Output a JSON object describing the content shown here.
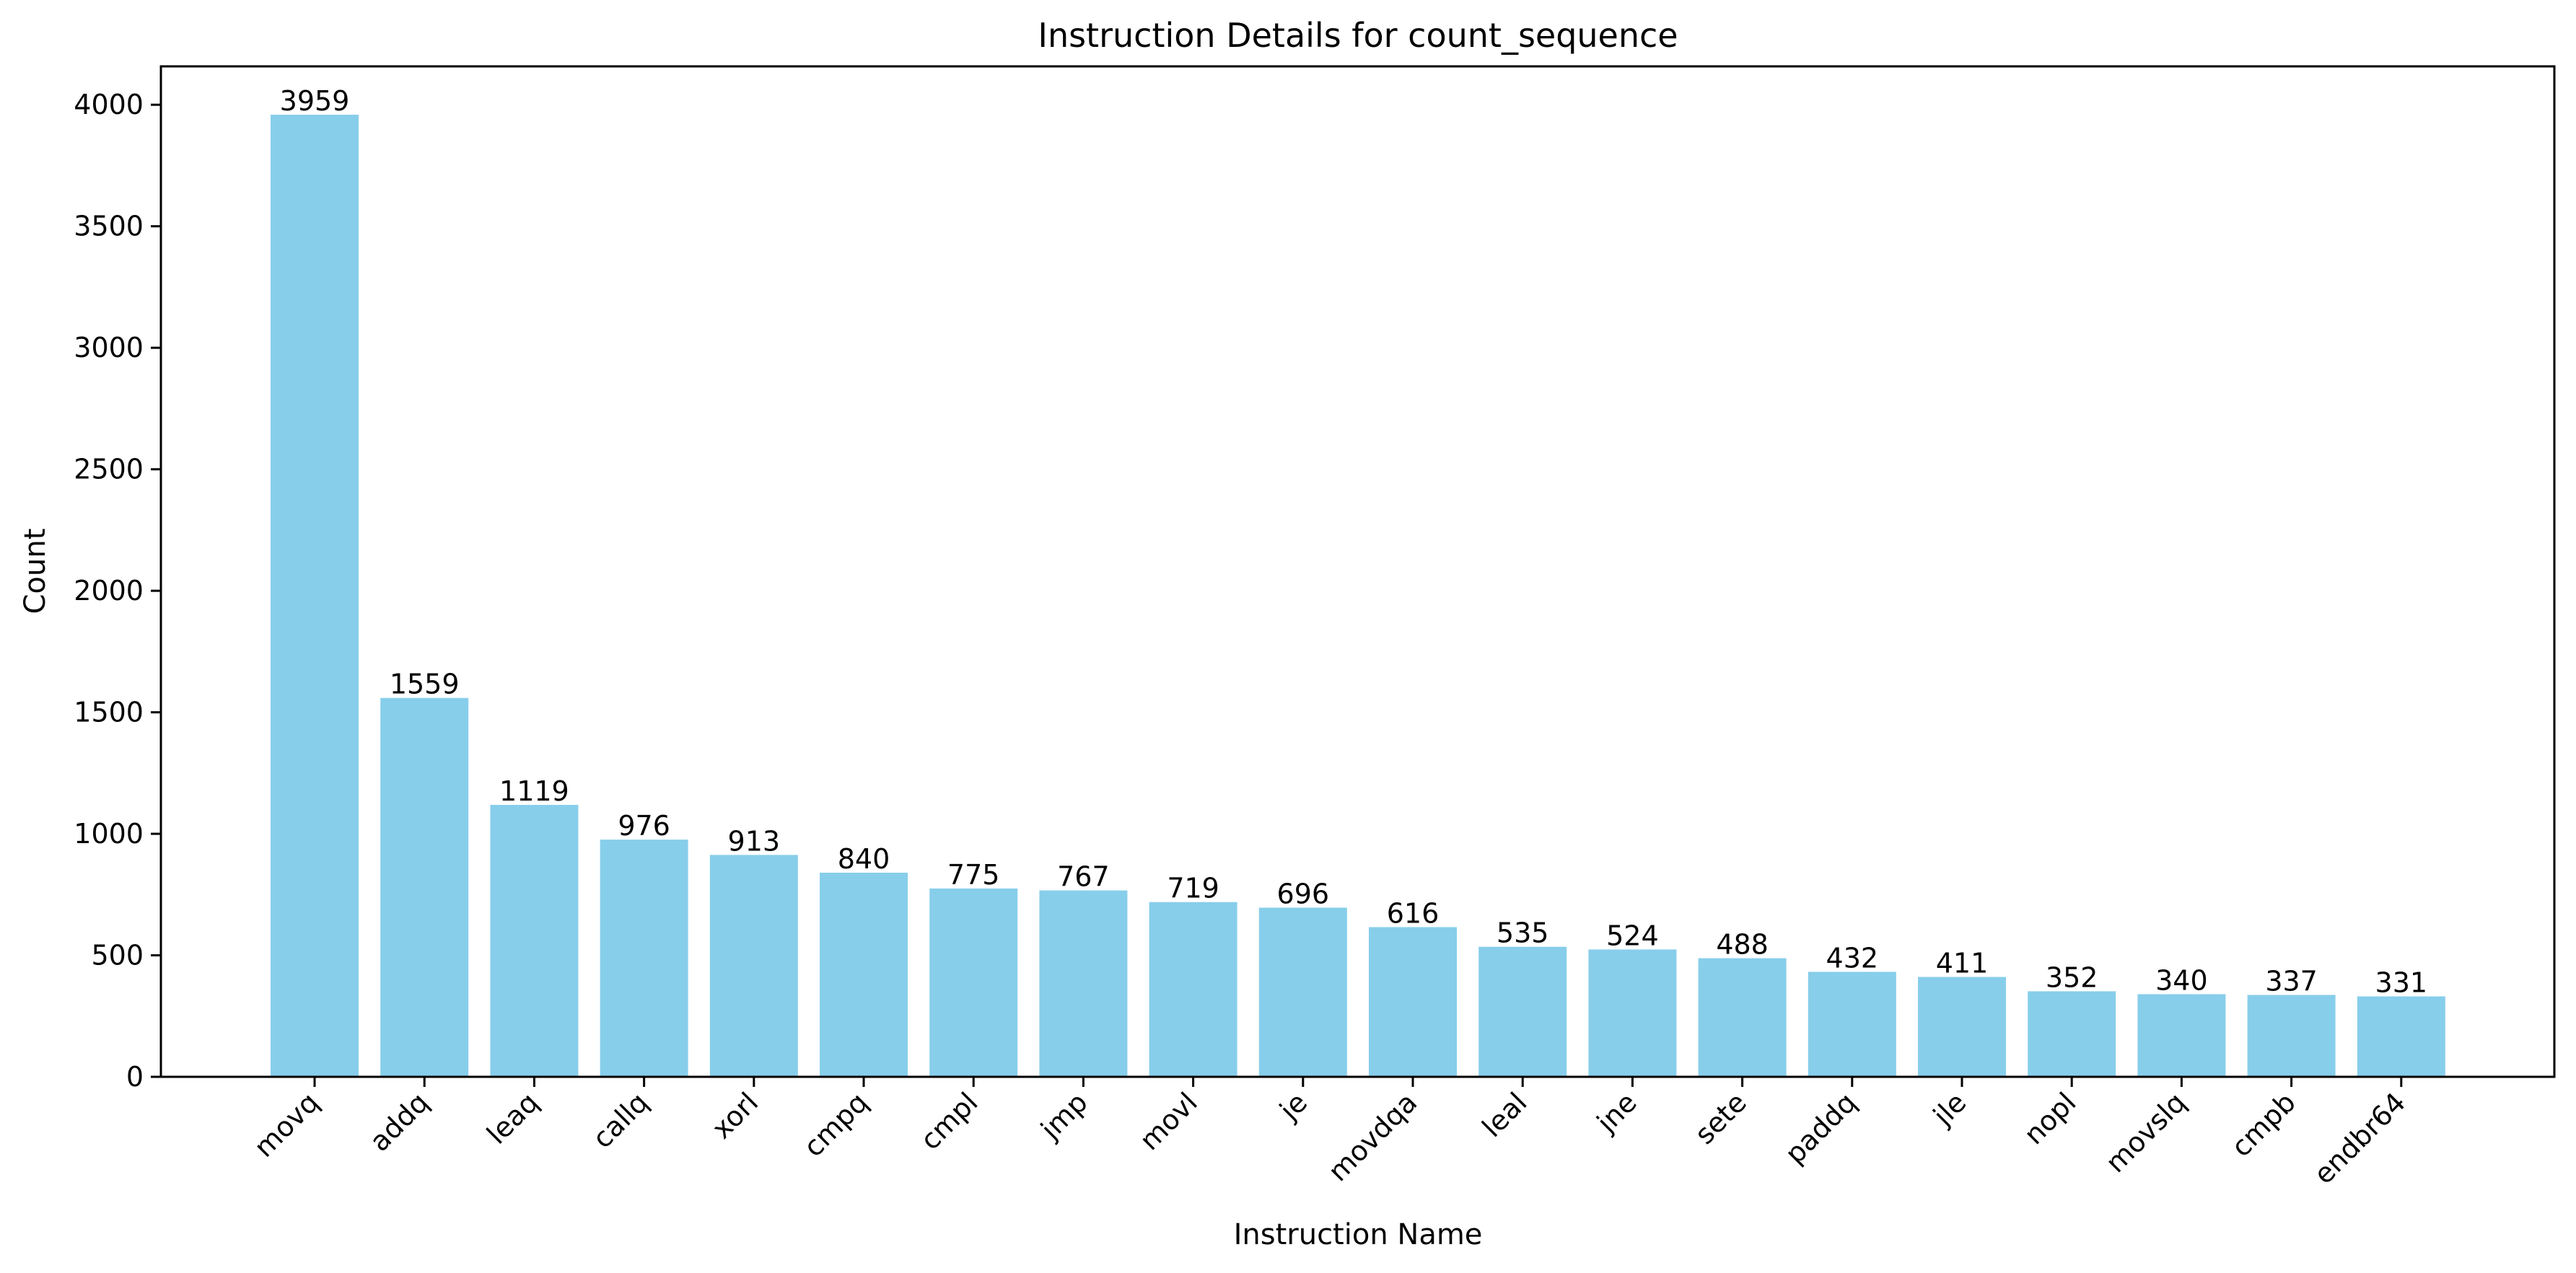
{
  "chart_data": {
    "type": "bar",
    "title": "Instruction Details for count_sequence",
    "xlabel": "Instruction Name",
    "ylabel": "Count",
    "categories": [
      "movq",
      "addq",
      "leaq",
      "callq",
      "xorl",
      "cmpq",
      "cmpl",
      "jmp",
      "movl",
      "je",
      "movdqa",
      "leal",
      "jne",
      "sete",
      "paddq",
      "jle",
      "nopl",
      "movslq",
      "cmpb",
      "endbr64"
    ],
    "values": [
      3959,
      1559,
      1119,
      976,
      913,
      840,
      775,
      767,
      719,
      696,
      616,
      535,
      524,
      488,
      432,
      411,
      352,
      340,
      337,
      331
    ],
    "ylim": [
      0,
      4158
    ],
    "yticks": [
      0,
      500,
      1000,
      1500,
      2000,
      2500,
      3000,
      3500,
      4000
    ],
    "grid": false,
    "bar_color": "#87CEEB"
  }
}
